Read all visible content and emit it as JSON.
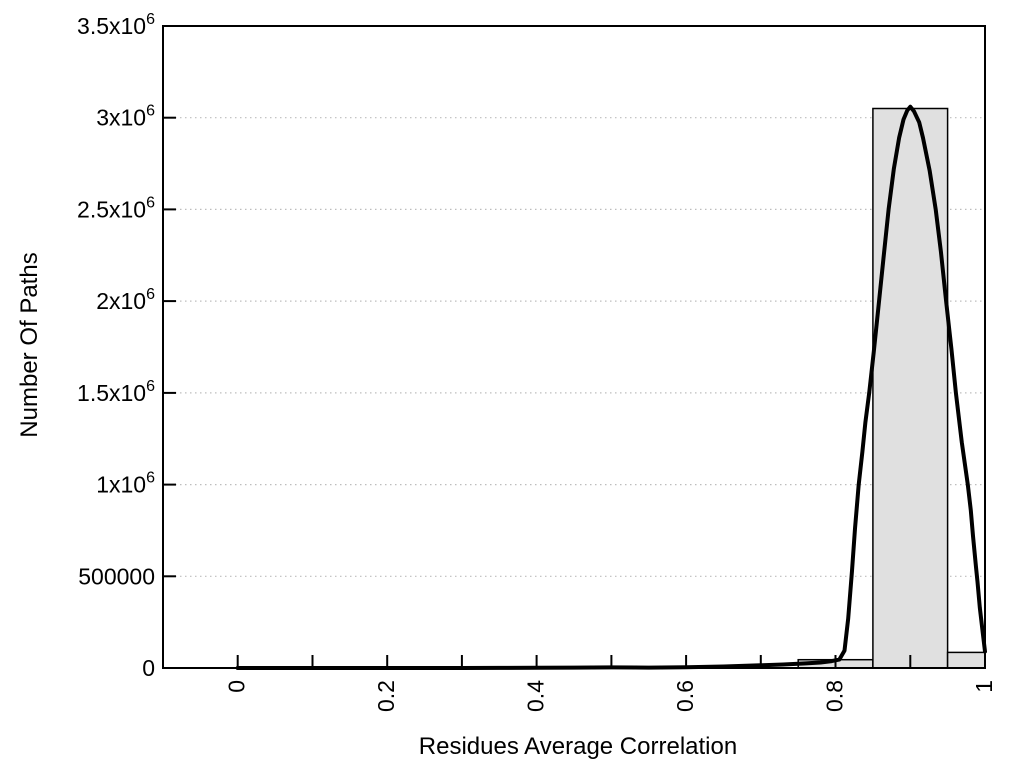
{
  "chart_data": {
    "type": "bar",
    "subtype": "histogram-with-fit-curve",
    "title": "",
    "xlabel": "Residues Average Correlation",
    "ylabel": "Number Of Paths",
    "xlim": [
      -0.1,
      1.0
    ],
    "ylim": [
      0,
      3500000
    ],
    "grid": "horizontal-dotted",
    "legend": "none",
    "bins": [
      {
        "x0": 0.75,
        "x1": 0.85,
        "count": 45000
      },
      {
        "x0": 0.85,
        "x1": 0.95,
        "count": 3050000
      },
      {
        "x0": 0.95,
        "x1": 1.0,
        "count": 85000
      }
    ],
    "curve": {
      "name": "fit-curve",
      "peak": {
        "x": 0.9,
        "y": 3060000
      },
      "points": [
        [
          0.0,
          0
        ],
        [
          0.05,
          0
        ],
        [
          0.1,
          0
        ],
        [
          0.15,
          0
        ],
        [
          0.2,
          0
        ],
        [
          0.25,
          0
        ],
        [
          0.3,
          0
        ],
        [
          0.35,
          500
        ],
        [
          0.4,
          1000
        ],
        [
          0.45,
          2000
        ],
        [
          0.5,
          3000
        ],
        [
          0.55,
          2000
        ],
        [
          0.6,
          4500
        ],
        [
          0.65,
          8000
        ],
        [
          0.7,
          14500
        ],
        [
          0.73,
          19000
        ],
        [
          0.76,
          25000
        ],
        [
          0.78,
          30000
        ],
        [
          0.795,
          37500
        ],
        [
          0.805,
          46000
        ],
        [
          0.812,
          95000
        ],
        [
          0.817,
          270000
        ],
        [
          0.822,
          530000
        ],
        [
          0.826,
          760000
        ],
        [
          0.831,
          1000000
        ],
        [
          0.836,
          1180000
        ],
        [
          0.84,
          1340000
        ],
        [
          0.845,
          1500000
        ],
        [
          0.851,
          1720000
        ],
        [
          0.857,
          1950000
        ],
        [
          0.864,
          2230000
        ],
        [
          0.871,
          2500000
        ],
        [
          0.878,
          2720000
        ],
        [
          0.885,
          2890000
        ],
        [
          0.891,
          2990000
        ],
        [
          0.896,
          3040000
        ],
        [
          0.9,
          3060000
        ],
        [
          0.905,
          3035000
        ],
        [
          0.912,
          2975000
        ],
        [
          0.917,
          2890000
        ],
        [
          0.926,
          2710000
        ],
        [
          0.934,
          2500000
        ],
        [
          0.941,
          2270000
        ],
        [
          0.948,
          2000000
        ],
        [
          0.955,
          1740000
        ],
        [
          0.961,
          1500000
        ],
        [
          0.969,
          1230000
        ],
        [
          0.977,
          1000000
        ],
        [
          0.981,
          860000
        ],
        [
          0.984,
          720000
        ],
        [
          0.988,
          550000
        ],
        [
          0.99,
          470000
        ],
        [
          0.993,
          330000
        ],
        [
          0.997,
          190000
        ],
        [
          1.0,
          90000
        ]
      ]
    },
    "x_axis": {
      "major_ticks": [
        {
          "value": 0,
          "label": "0"
        },
        {
          "value": 0.2,
          "label": "0.2"
        },
        {
          "value": 0.4,
          "label": "0.4"
        },
        {
          "value": 0.6,
          "label": "0.6"
        },
        {
          "value": 0.8,
          "label": "0.8"
        },
        {
          "value": 1,
          "label": "1"
        }
      ],
      "minor_ticks": [
        0.1,
        0.3,
        0.5,
        0.7,
        0.9
      ],
      "tick_label_rotation_deg": -90
    },
    "y_axis": {
      "major_ticks": [
        {
          "value": 0,
          "base": "0",
          "sup": ""
        },
        {
          "value": 500000,
          "base": "500000",
          "sup": ""
        },
        {
          "value": 1000000,
          "base": "1x10",
          "sup": "6"
        },
        {
          "value": 1500000,
          "base": "1.5x10",
          "sup": "6"
        },
        {
          "value": 2000000,
          "base": "2x10",
          "sup": "6"
        },
        {
          "value": 2500000,
          "base": "2.5x10",
          "sup": "6"
        },
        {
          "value": 3000000,
          "base": "3x10",
          "sup": "6"
        },
        {
          "value": 3500000,
          "base": "3.5x10",
          "sup": "6"
        }
      ],
      "gridlines": [
        500000,
        1000000,
        1500000,
        2000000,
        2500000,
        3000000
      ]
    },
    "colors": {
      "background": "#ffffff",
      "axis": "#000000",
      "grid": "#bdbdbd",
      "bar_fill": "#e0e0e0",
      "bar_stroke": "#000000",
      "curve": "#000000",
      "text": "#000000"
    }
  }
}
